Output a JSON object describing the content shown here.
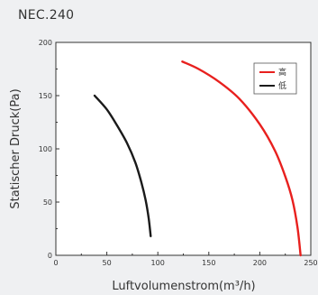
{
  "page": {
    "title": "NEC.240"
  },
  "chart_data": {
    "type": "line",
    "title": "NEC.240",
    "xlabel": "Luftvolumenstrom(m³/h)",
    "ylabel": "Statischer Druck(Pa)",
    "xlim": [
      0,
      250
    ],
    "ylim": [
      0,
      200
    ],
    "xticks": [
      "0",
      "50",
      "100",
      "150",
      "200",
      "250"
    ],
    "yticks": [
      "0",
      "50",
      "100",
      "150",
      "200"
    ],
    "grid": false,
    "legend": "top-right",
    "series": [
      {
        "name": "高",
        "color": "#e8201e",
        "x": [
          124,
          140,
          160,
          180,
          200,
          215,
          225,
          232,
          237,
          240
        ],
        "y": [
          182,
          175,
          163,
          147,
          123,
          98,
          74,
          52,
          26,
          0
        ]
      },
      {
        "name": "低",
        "color": "#1a1a1a",
        "x": [
          38,
          50,
          60,
          70,
          78,
          84,
          88,
          91,
          93
        ],
        "y": [
          150,
          137,
          122,
          105,
          87,
          68,
          52,
          35,
          18
        ]
      }
    ]
  }
}
